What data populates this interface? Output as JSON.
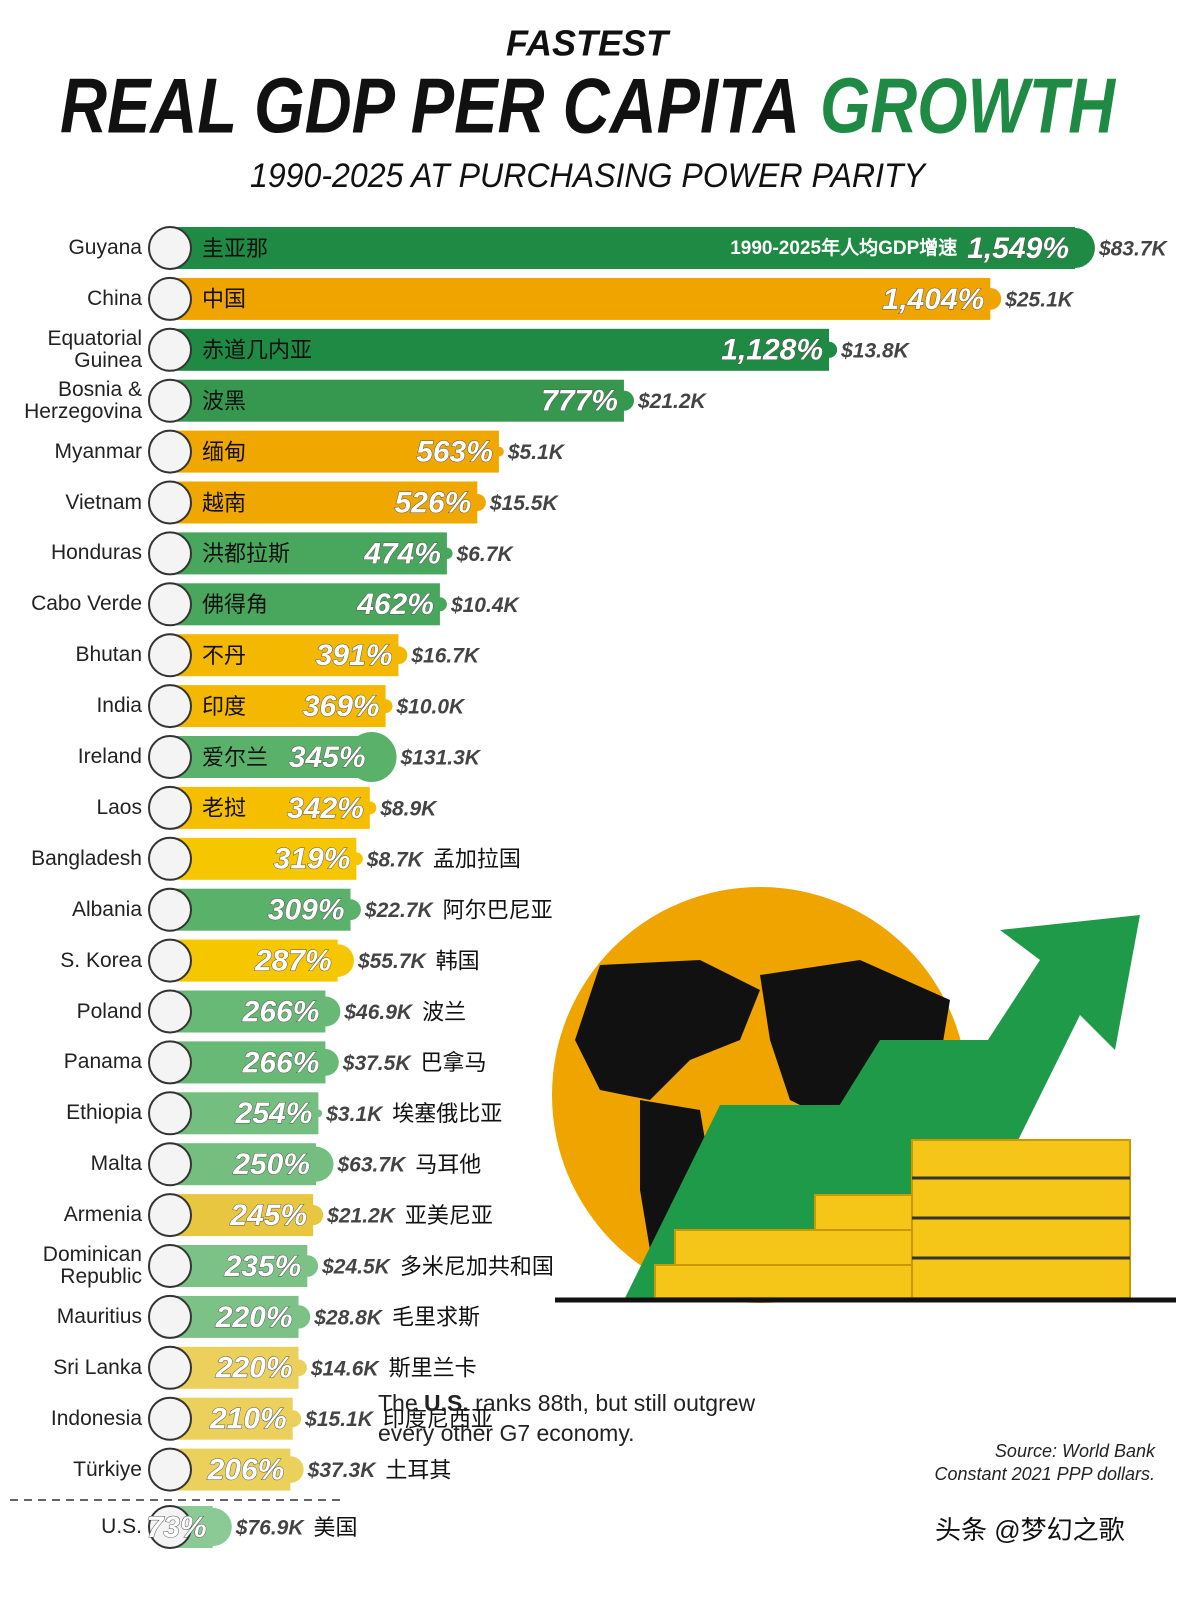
{
  "chart_data": {
    "type": "bar",
    "orientation": "horizontal",
    "kicker": "FASTEST",
    "title": "REAL GDP PER CAPITA",
    "title_highlight": "GROWTH",
    "subtitle": "1990-2025 AT PURCHASING POWER PARITY",
    "bar_annotation": "1990-2025年人均GDP增速",
    "categories": [
      "Guyana",
      "China",
      "Equatorial Guinea",
      "Bosnia & Herzegovina",
      "Myanmar",
      "Vietnam",
      "Honduras",
      "Cabo Verde",
      "Bhutan",
      "India",
      "Ireland",
      "Laos",
      "Bangladesh",
      "Albania",
      "S. Korea",
      "Poland",
      "Panama",
      "Ethiopia",
      "Malta",
      "Armenia",
      "Dominican Republic",
      "Mauritius",
      "Sri Lanka",
      "Indonesia",
      "Türkiye",
      "U.S."
    ],
    "labels_zh": [
      "圭亚那",
      "中国",
      "赤道几内亚",
      "波黑",
      "缅甸",
      "越南",
      "洪都拉斯",
      "佛得角",
      "不丹",
      "印度",
      "爱尔兰",
      "老挝",
      "孟加拉国",
      "阿尔巴尼亚",
      "韩国",
      "波兰",
      "巴拿马",
      "埃塞俄比亚",
      "马耳他",
      "亚美尼亚",
      "多米尼加共和国",
      "毛里求斯",
      "斯里兰卡",
      "印度尼西亚",
      "土耳其",
      "美国"
    ],
    "values": [
      1549,
      1404,
      1128,
      777,
      563,
      526,
      474,
      462,
      391,
      369,
      345,
      342,
      319,
      309,
      287,
      266,
      266,
      254,
      250,
      245,
      235,
      220,
      220,
      210,
      206,
      73
    ],
    "value_labels": [
      "1,549%",
      "1,404%",
      "1,128%",
      "777%",
      "563%",
      "526%",
      "474%",
      "462%",
      "391%",
      "369%",
      "345%",
      "342%",
      "319%",
      "309%",
      "287%",
      "266%",
      "266%",
      "254%",
      "250%",
      "245%",
      "235%",
      "220%",
      "220%",
      "210%",
      "206%",
      "73%"
    ],
    "gdp": [
      83700,
      25100,
      13800,
      21200,
      5100,
      15500,
      6700,
      10400,
      16700,
      10000,
      131300,
      8900,
      8700,
      22700,
      55700,
      46900,
      37500,
      3100,
      63700,
      21200,
      24500,
      28800,
      14600,
      15100,
      37300,
      76900
    ],
    "gdp_labels": [
      "$83.7K",
      "$25.1K",
      "$13.8K",
      "$21.2K",
      "$5.1K",
      "$15.5K",
      "$6.7K",
      "$10.4K",
      "$16.7K",
      "$10.0K",
      "$131.3K",
      "$8.9K",
      "$8.7K",
      "$22.7K",
      "$55.7K",
      "$46.9K",
      "$37.5K",
      "$3.1K",
      "$63.7K",
      "$21.2K",
      "$24.5K",
      "$28.8K",
      "$14.6K",
      "$15.1K",
      "$37.3K",
      "$76.9K"
    ],
    "colors": [
      "#1f8a44",
      "#f0a400",
      "#1f8a44",
      "#36984f",
      "#f0a800",
      "#f0a800",
      "#48a65d",
      "#48a65d",
      "#f4b800",
      "#f4b800",
      "#5ab26a",
      "#f5bf00",
      "#f6c700",
      "#5ab26a",
      "#f6c700",
      "#69b976",
      "#69b976",
      "#74be7f",
      "#74be7f",
      "#e8c640",
      "#7cc287",
      "#7cc287",
      "#ecd05c",
      "#ecd05c",
      "#ecd05c",
      "#8bc995"
    ],
    "note_lead": "The",
    "note_bold": "U.S.",
    "note_rest": "ranks 88th, but still outgrew every other G7 economy.",
    "source": "Source: World Bank",
    "source_note": "Constant 2021 PPP dollars.",
    "watermark": "头条 @梦幻之歌"
  }
}
